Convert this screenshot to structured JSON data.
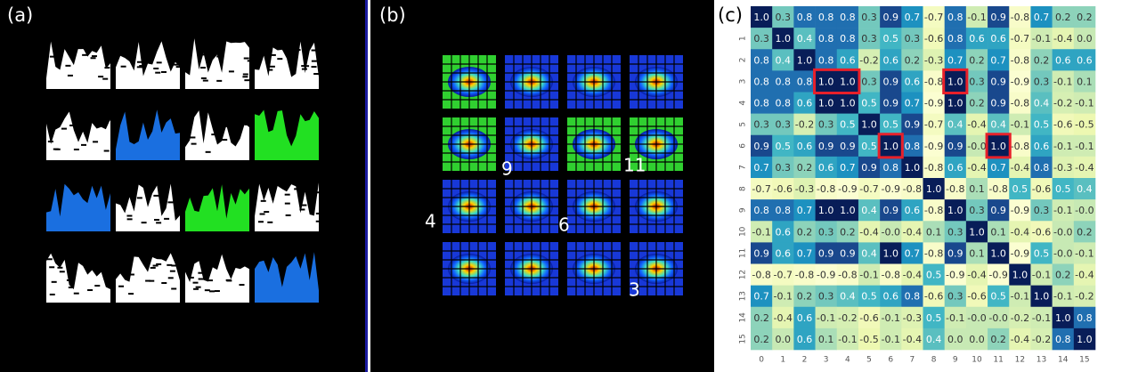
{
  "panel_a": {
    "label": "(a)"
  },
  "panel_b": {
    "label": "(b)",
    "annotations": [
      "9",
      "11",
      "4",
      "6",
      "3"
    ]
  },
  "panel_c": {
    "label": "(c)",
    "x_ticks": [
      0,
      1,
      2,
      3,
      4,
      5,
      6,
      7,
      8,
      9,
      10,
      11,
      12,
      13,
      14,
      15
    ],
    "y_ticks": [
      1,
      2,
      3,
      4,
      5,
      6,
      7,
      8,
      9,
      10,
      11,
      12,
      13,
      14,
      15
    ],
    "cells": [
      [
        "1.0",
        "0.3",
        "0.8",
        "0.8",
        "0.8",
        "0.3",
        "0.9",
        "0.7",
        "-0.7",
        "0.8",
        "-0.1",
        "0.9",
        "-0.8",
        "0.7",
        "0.2",
        "0.2"
      ],
      [
        "0.3",
        "1.0",
        "0.4",
        "0.8",
        "0.8",
        "0.3",
        "0.5",
        "0.3",
        "-0.6",
        "0.8",
        "0.6",
        "0.6",
        "-0.7",
        "-0.1",
        "-0.4",
        "0.0"
      ],
      [
        "0.8",
        "0.4",
        "1.0",
        "0.8",
        "0.6",
        "-0.2",
        "0.6",
        "0.2",
        "-0.3",
        "0.7",
        "0.2",
        "0.7",
        "-0.8",
        "0.2",
        "0.6",
        "0.6"
      ],
      [
        "0.8",
        "0.8",
        "0.8",
        "1.0",
        "1.0",
        "0.3",
        "0.9",
        "0.6",
        "-0.8",
        "1.0",
        "0.3",
        "0.9",
        "-0.9",
        "0.3",
        "-0.1",
        "0.1"
      ],
      [
        "0.8",
        "0.8",
        "0.6",
        "1.0",
        "1.0",
        "0.5",
        "0.9",
        "0.7",
        "-0.9",
        "1.0",
        "0.2",
        "0.9",
        "-0.8",
        "0.4",
        "-0.2",
        "-0.1"
      ],
      [
        "0.3",
        "0.3",
        "-0.2",
        "0.3",
        "0.5",
        "1.0",
        "0.5",
        "0.9",
        "-0.7",
        "0.4",
        "-0.4",
        "0.4",
        "-0.1",
        "0.5",
        "-0.6",
        "-0.5"
      ],
      [
        "0.9",
        "0.5",
        "0.6",
        "0.9",
        "0.9",
        "0.5",
        "1.0",
        "0.8",
        "-0.9",
        "0.9",
        "-0.0",
        "1.0",
        "-0.8",
        "0.6",
        "-0.1",
        "-0.1"
      ],
      [
        "0.7",
        "0.3",
        "0.2",
        "0.6",
        "0.7",
        "0.9",
        "0.8",
        "1.0",
        "-0.8",
        "0.6",
        "-0.4",
        "0.7",
        "-0.4",
        "0.8",
        "-0.3",
        "-0.4"
      ],
      [
        "-0.7",
        "-0.6",
        "-0.3",
        "-0.8",
        "-0.9",
        "-0.7",
        "-0.9",
        "-0.8",
        "1.0",
        "-0.8",
        "0.1",
        "-0.8",
        "0.5",
        "-0.6",
        "0.5",
        "0.4"
      ],
      [
        "0.8",
        "0.8",
        "0.7",
        "1.0",
        "1.0",
        "0.4",
        "0.9",
        "0.6",
        "-0.8",
        "1.0",
        "0.3",
        "0.9",
        "-0.9",
        "0.3",
        "-0.1",
        "-0.0"
      ],
      [
        "-0.1",
        "0.6",
        "0.2",
        "0.3",
        "0.2",
        "-0.4",
        "-0.0",
        "-0.4",
        "0.1",
        "0.3",
        "1.0",
        "0.1",
        "-0.4",
        "-0.6",
        "-0.0",
        "0.2"
      ],
      [
        "0.9",
        "0.6",
        "0.7",
        "0.9",
        "0.9",
        "0.4",
        "1.0",
        "0.7",
        "-0.8",
        "0.9",
        "0.1",
        "1.0",
        "-0.9",
        "0.5",
        "-0.0",
        "-0.1"
      ],
      [
        "-0.8",
        "-0.7",
        "-0.8",
        "-0.9",
        "-0.8",
        "-0.1",
        "-0.8",
        "-0.4",
        "0.5",
        "-0.9",
        "-0.4",
        "-0.9",
        "1.0",
        "-0.1",
        "0.2",
        "-0.4"
      ],
      [
        "0.7",
        "-0.1",
        "0.2",
        "0.3",
        "0.4",
        "0.5",
        "0.6",
        "0.8",
        "-0.6",
        "0.3",
        "-0.6",
        "0.5",
        "-0.1",
        "1.0",
        "-0.1",
        "-0.2"
      ],
      [
        "0.2",
        "-0.4",
        "0.6",
        "-0.1",
        "-0.2",
        "-0.6",
        "-0.1",
        "-0.3",
        "0.5",
        "-0.1",
        "-0.0",
        "-0.0",
        "-0.2",
        "-0.1",
        "1.0",
        "0.8"
      ],
      [
        "0.2",
        "0.0",
        "0.6",
        "0.1",
        "-0.1",
        "-0.5",
        "-0.1",
        "-0.4",
        "0.4",
        "0.0",
        "0.0",
        "0.2",
        "-0.4",
        "-0.2",
        "0.8",
        "1.0"
      ]
    ]
  }
}
